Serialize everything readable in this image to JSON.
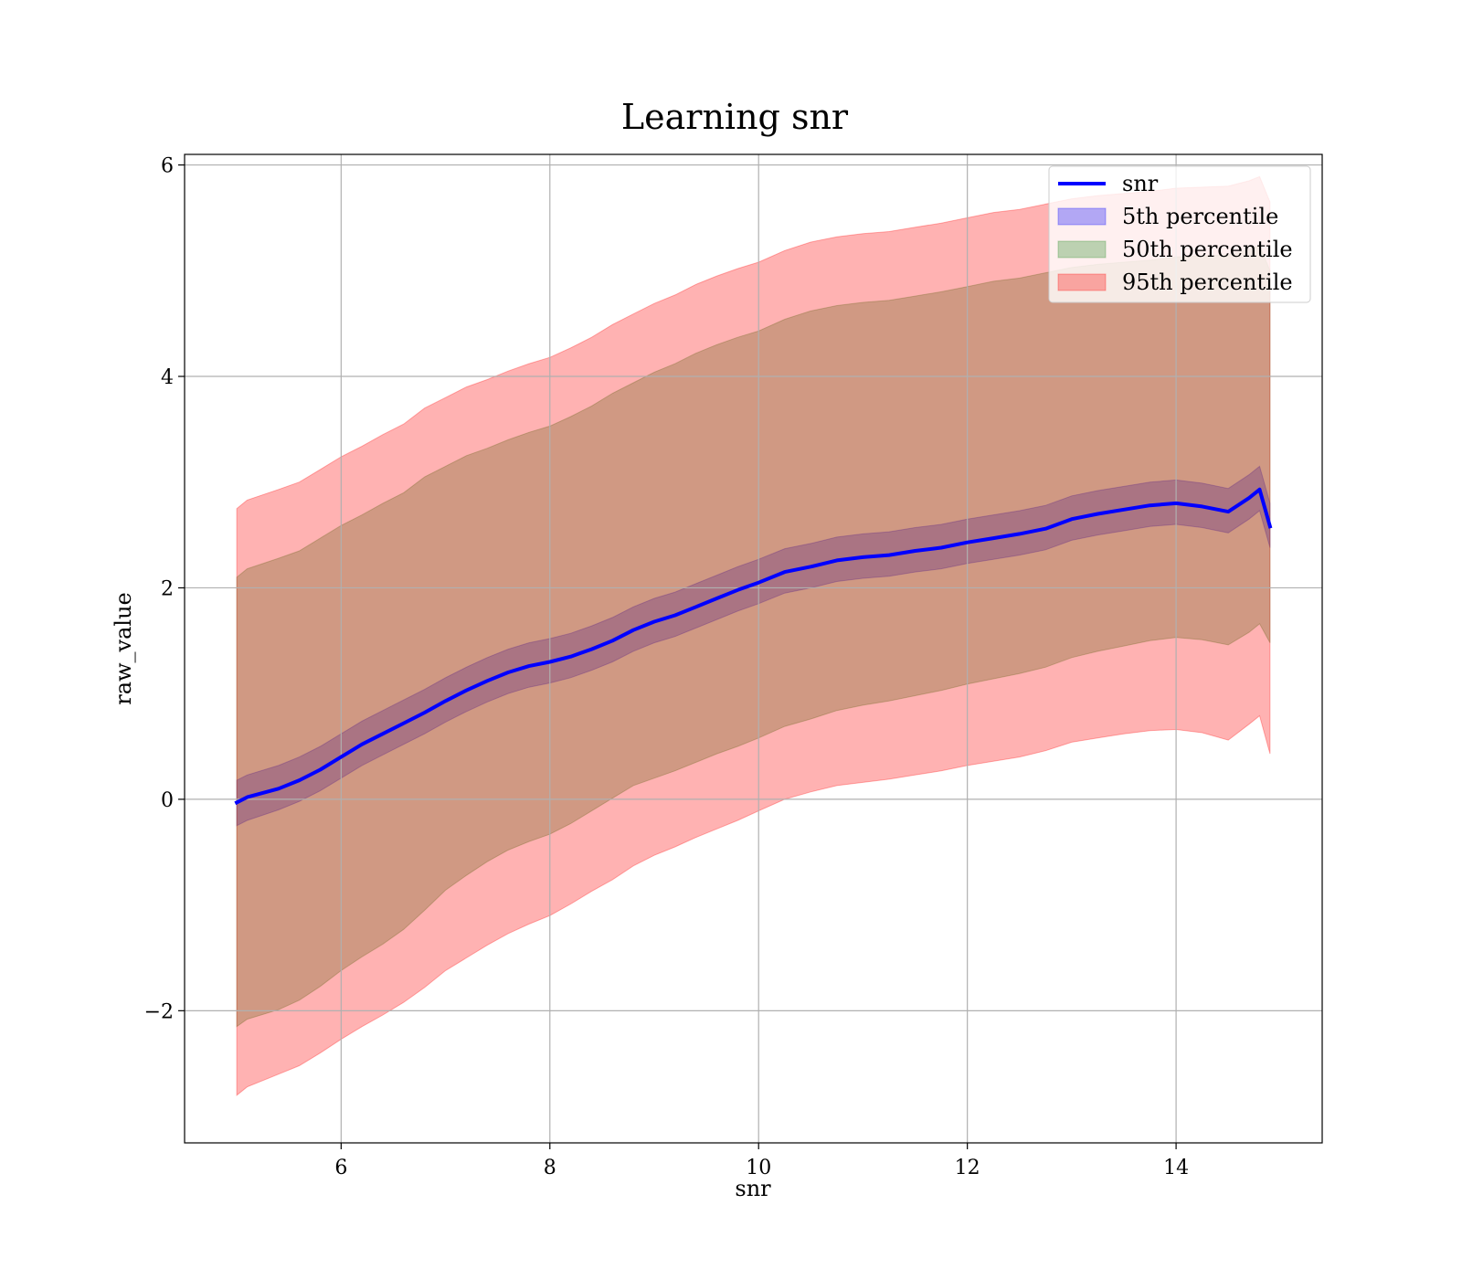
{
  "chart_data": {
    "type": "line",
    "title": "Learning snr",
    "xlabel": "snr",
    "ylabel": "raw_value",
    "xlim": [
      4.5,
      15.4
    ],
    "ylim": [
      -3.25,
      6.1
    ],
    "xticks": [
      6,
      8,
      10,
      12,
      14
    ],
    "yticks": [
      -2,
      0,
      2,
      4,
      6
    ],
    "xtick_labels": [
      "6",
      "8",
      "10",
      "12",
      "14"
    ],
    "ytick_labels": [
      "−2",
      "0",
      "2",
      "4",
      "6"
    ],
    "grid": true,
    "legend_position": "top-right",
    "x": [
      5.0,
      5.1,
      5.4,
      5.6,
      5.8,
      6.0,
      6.2,
      6.4,
      6.6,
      6.8,
      7.0,
      7.2,
      7.4,
      7.6,
      7.8,
      8.0,
      8.2,
      8.4,
      8.6,
      8.8,
      9.0,
      9.2,
      9.4,
      9.6,
      9.8,
      10.0,
      10.25,
      10.5,
      10.75,
      11.0,
      11.25,
      11.5,
      11.75,
      12.0,
      12.25,
      12.5,
      12.75,
      13.0,
      13.25,
      13.5,
      13.75,
      14.0,
      14.25,
      14.5,
      14.7,
      14.8,
      14.9
    ],
    "series": [
      {
        "name": "snr",
        "kind": "line",
        "color": "#0000ff",
        "values": [
          -0.03,
          0.02,
          0.1,
          0.18,
          0.28,
          0.4,
          0.52,
          0.62,
          0.72,
          0.82,
          0.93,
          1.03,
          1.12,
          1.2,
          1.26,
          1.3,
          1.35,
          1.42,
          1.5,
          1.6,
          1.68,
          1.74,
          1.82,
          1.9,
          1.98,
          2.05,
          2.15,
          2.2,
          2.26,
          2.29,
          2.31,
          2.35,
          2.38,
          2.43,
          2.47,
          2.51,
          2.56,
          2.65,
          2.7,
          2.74,
          2.78,
          2.8,
          2.77,
          2.72,
          2.85,
          2.93,
          2.58
        ]
      },
      {
        "name": "5th percentile",
        "kind": "band",
        "color": "#0000ff",
        "lower": [
          -0.25,
          -0.2,
          -0.1,
          -0.02,
          0.08,
          0.2,
          0.32,
          0.42,
          0.52,
          0.62,
          0.73,
          0.83,
          0.92,
          1.0,
          1.06,
          1.1,
          1.15,
          1.22,
          1.3,
          1.4,
          1.48,
          1.54,
          1.62,
          1.7,
          1.78,
          1.85,
          1.95,
          2.0,
          2.06,
          2.09,
          2.11,
          2.15,
          2.18,
          2.23,
          2.27,
          2.31,
          2.36,
          2.45,
          2.5,
          2.54,
          2.58,
          2.6,
          2.57,
          2.52,
          2.65,
          2.73,
          2.38
        ],
        "upper": [
          0.18,
          0.23,
          0.32,
          0.4,
          0.5,
          0.62,
          0.74,
          0.84,
          0.94,
          1.04,
          1.15,
          1.25,
          1.34,
          1.42,
          1.48,
          1.52,
          1.57,
          1.64,
          1.72,
          1.82,
          1.9,
          1.96,
          2.04,
          2.12,
          2.2,
          2.27,
          2.37,
          2.42,
          2.48,
          2.51,
          2.53,
          2.57,
          2.6,
          2.65,
          2.69,
          2.73,
          2.78,
          2.87,
          2.92,
          2.96,
          3.0,
          3.02,
          2.99,
          2.94,
          3.07,
          3.15,
          2.8
        ]
      },
      {
        "name": "50th percentile",
        "kind": "band",
        "color": "#228b22",
        "lower": [
          -2.15,
          -2.08,
          -1.99,
          -1.9,
          -1.77,
          -1.62,
          -1.49,
          -1.37,
          -1.23,
          -1.05,
          -0.86,
          -0.72,
          -0.59,
          -0.48,
          -0.4,
          -0.33,
          -0.23,
          -0.11,
          0.01,
          0.13,
          0.2,
          0.27,
          0.35,
          0.43,
          0.5,
          0.58,
          0.69,
          0.76,
          0.84,
          0.89,
          0.93,
          0.98,
          1.03,
          1.09,
          1.14,
          1.19,
          1.25,
          1.34,
          1.4,
          1.45,
          1.5,
          1.53,
          1.51,
          1.46,
          1.58,
          1.66,
          1.48
        ],
        "upper": [
          2.1,
          2.18,
          2.28,
          2.35,
          2.47,
          2.59,
          2.69,
          2.8,
          2.9,
          3.05,
          3.15,
          3.25,
          3.32,
          3.4,
          3.47,
          3.53,
          3.62,
          3.72,
          3.84,
          3.94,
          4.04,
          4.12,
          4.22,
          4.3,
          4.37,
          4.43,
          4.54,
          4.62,
          4.67,
          4.7,
          4.72,
          4.76,
          4.8,
          4.85,
          4.9,
          4.93,
          4.98,
          5.03,
          5.06,
          5.08,
          5.1,
          5.13,
          5.14,
          5.15,
          5.2,
          5.24,
          5.0
        ]
      },
      {
        "name": "95th percentile",
        "kind": "band",
        "color": "#ff0000",
        "lower": [
          -2.8,
          -2.72,
          -2.6,
          -2.52,
          -2.4,
          -2.27,
          -2.15,
          -2.04,
          -1.92,
          -1.78,
          -1.62,
          -1.5,
          -1.38,
          -1.27,
          -1.18,
          -1.1,
          -0.99,
          -0.87,
          -0.76,
          -0.63,
          -0.53,
          -0.45,
          -0.36,
          -0.28,
          -0.2,
          -0.11,
          0.0,
          0.07,
          0.13,
          0.16,
          0.19,
          0.23,
          0.27,
          0.32,
          0.36,
          0.4,
          0.46,
          0.54,
          0.58,
          0.62,
          0.65,
          0.66,
          0.63,
          0.56,
          0.71,
          0.79,
          0.43
        ],
        "upper": [
          2.75,
          2.83,
          2.93,
          3.0,
          3.12,
          3.24,
          3.34,
          3.45,
          3.55,
          3.7,
          3.8,
          3.9,
          3.97,
          4.05,
          4.12,
          4.18,
          4.27,
          4.37,
          4.49,
          4.59,
          4.69,
          4.77,
          4.87,
          4.95,
          5.02,
          5.08,
          5.19,
          5.27,
          5.32,
          5.35,
          5.37,
          5.41,
          5.45,
          5.5,
          5.55,
          5.58,
          5.63,
          5.68,
          5.71,
          5.73,
          5.75,
          5.78,
          5.79,
          5.8,
          5.85,
          5.89,
          5.65
        ]
      }
    ],
    "legend": [
      {
        "label": "snr",
        "kind": "line",
        "color": "#0000ff"
      },
      {
        "label": "5th percentile",
        "kind": "patch",
        "color": "#0000ff"
      },
      {
        "label": "50th percentile",
        "kind": "patch",
        "color": "#228b22"
      },
      {
        "label": "95th percentile",
        "kind": "patch",
        "color": "#ff0000"
      }
    ]
  }
}
